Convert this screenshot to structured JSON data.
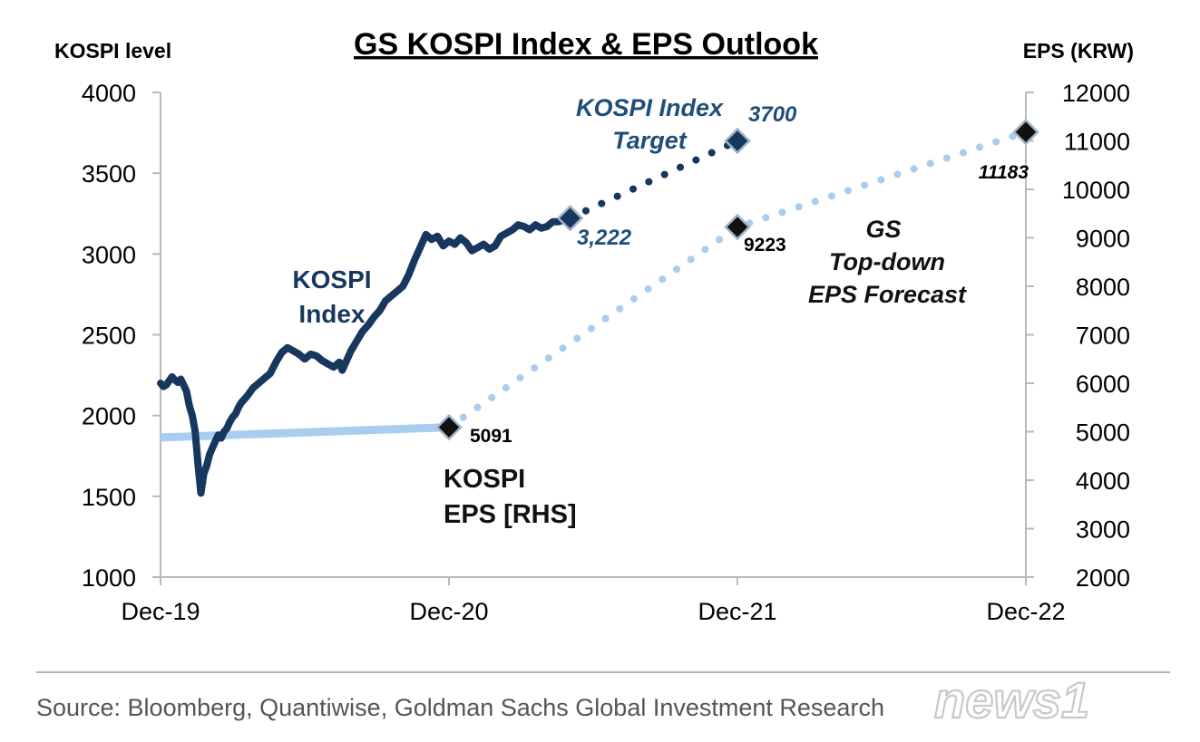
{
  "chart_data": {
    "type": "line",
    "title": "GS KOSPI Index & EPS Outlook",
    "left_axis": {
      "label": "KOSPI level",
      "range": [
        1000,
        4000
      ],
      "ticks": [
        1000,
        1500,
        2000,
        2500,
        3000,
        3500,
        4000
      ]
    },
    "right_axis": {
      "label": "EPS (KRW)",
      "range": [
        2000,
        12000
      ],
      "ticks": [
        2000,
        3000,
        4000,
        5000,
        6000,
        7000,
        8000,
        9000,
        10000,
        11000,
        12000
      ]
    },
    "x_axis": {
      "range": [
        0,
        3
      ],
      "ticks": [
        0,
        1,
        2,
        3
      ],
      "tick_labels": [
        "Dec-19",
        "Dec-20",
        "Dec-21",
        "Dec-22"
      ]
    },
    "series": [
      {
        "name": "KOSPI Index",
        "axis": "left",
        "style": "solid",
        "color": "#17375e",
        "points": [
          [
            0.0,
            2200
          ],
          [
            0.01,
            2180
          ],
          [
            0.02,
            2190
          ],
          [
            0.03,
            2215
          ],
          [
            0.04,
            2240
          ],
          [
            0.05,
            2220
          ],
          [
            0.06,
            2205
          ],
          [
            0.07,
            2225
          ],
          [
            0.08,
            2190
          ],
          [
            0.09,
            2150
          ],
          [
            0.1,
            2060
          ],
          [
            0.11,
            2000
          ],
          [
            0.12,
            1900
          ],
          [
            0.13,
            1700
          ],
          [
            0.14,
            1520
          ],
          [
            0.15,
            1640
          ],
          [
            0.16,
            1690
          ],
          [
            0.17,
            1760
          ],
          [
            0.18,
            1800
          ],
          [
            0.19,
            1840
          ],
          [
            0.2,
            1880
          ],
          [
            0.21,
            1860
          ],
          [
            0.22,
            1900
          ],
          [
            0.23,
            1920
          ],
          [
            0.24,
            1960
          ],
          [
            0.25,
            1990
          ],
          [
            0.26,
            2010
          ],
          [
            0.27,
            2050
          ],
          [
            0.28,
            2080
          ],
          [
            0.3,
            2120
          ],
          [
            0.32,
            2170
          ],
          [
            0.34,
            2200
          ],
          [
            0.36,
            2230
          ],
          [
            0.38,
            2260
          ],
          [
            0.4,
            2330
          ],
          [
            0.42,
            2390
          ],
          [
            0.44,
            2420
          ],
          [
            0.46,
            2400
          ],
          [
            0.48,
            2380
          ],
          [
            0.5,
            2350
          ],
          [
            0.52,
            2380
          ],
          [
            0.54,
            2370
          ],
          [
            0.56,
            2340
          ],
          [
            0.58,
            2320
          ],
          [
            0.6,
            2300
          ],
          [
            0.62,
            2330
          ],
          [
            0.63,
            2280
          ],
          [
            0.64,
            2320
          ],
          [
            0.66,
            2400
          ],
          [
            0.68,
            2460
          ],
          [
            0.7,
            2520
          ],
          [
            0.72,
            2560
          ],
          [
            0.74,
            2610
          ],
          [
            0.76,
            2650
          ],
          [
            0.78,
            2710
          ],
          [
            0.8,
            2740
          ],
          [
            0.82,
            2770
          ],
          [
            0.84,
            2800
          ],
          [
            0.86,
            2870
          ],
          [
            0.88,
            2960
          ],
          [
            0.9,
            3040
          ],
          [
            0.92,
            3120
          ],
          [
            0.94,
            3090
          ],
          [
            0.96,
            3110
          ],
          [
            0.98,
            3050
          ],
          [
            1.0,
            3080
          ],
          [
            1.02,
            3060
          ],
          [
            1.04,
            3100
          ],
          [
            1.06,
            3070
          ],
          [
            1.08,
            3020
          ],
          [
            1.1,
            3040
          ],
          [
            1.12,
            3060
          ],
          [
            1.14,
            3030
          ],
          [
            1.16,
            3050
          ],
          [
            1.18,
            3110
          ],
          [
            1.2,
            3130
          ],
          [
            1.22,
            3150
          ],
          [
            1.24,
            3180
          ],
          [
            1.26,
            3170
          ],
          [
            1.28,
            3150
          ],
          [
            1.3,
            3180
          ],
          [
            1.32,
            3160
          ],
          [
            1.34,
            3170
          ],
          [
            1.36,
            3200
          ],
          [
            1.38,
            3200
          ],
          [
            1.4,
            3210
          ],
          [
            1.42,
            3222
          ]
        ]
      },
      {
        "name": "KOSPI Index Target",
        "axis": "left",
        "style": "dotted",
        "color": "#17375e",
        "points": [
          [
            1.42,
            3222
          ],
          [
            2.0,
            3700
          ]
        ]
      },
      {
        "name": "KOSPI EPS [RHS]",
        "axis": "right",
        "style": "solid",
        "color": "#a9cdef",
        "points": [
          [
            0.0,
            4880
          ],
          [
            1.0,
            5091
          ]
        ]
      },
      {
        "name": "GS Top-down EPS Forecast",
        "axis": "right",
        "style": "dotted",
        "color": "#a9cdef",
        "points": [
          [
            1.0,
            5091
          ],
          [
            2.0,
            9223
          ],
          [
            3.0,
            11183
          ]
        ]
      }
    ],
    "markers": [
      {
        "name": "marker-kospi-current",
        "x": 1.42,
        "y": 3222,
        "axis": "left",
        "fill": "#17375e",
        "label": "3,222"
      },
      {
        "name": "marker-kospi-target",
        "x": 2.0,
        "y": 3700,
        "axis": "left",
        "fill": "#17375e",
        "label": "3700"
      },
      {
        "name": "marker-eps-dec20",
        "x": 1.0,
        "y": 5091,
        "axis": "right",
        "fill": "#111111",
        "label": "5091"
      },
      {
        "name": "marker-eps-dec21",
        "x": 2.0,
        "y": 9223,
        "axis": "right",
        "fill": "#111111",
        "label": "9223"
      },
      {
        "name": "marker-eps-dec22",
        "x": 3.0,
        "y": 11183,
        "axis": "right",
        "fill": "#111111",
        "label": "11183"
      }
    ],
    "annotations": {
      "kospi_index": [
        "KOSPI",
        "Index"
      ],
      "kospi_target": [
        "KOSPI Index",
        "Target"
      ],
      "kospi_eps": [
        "KOSPI",
        "EPS [RHS]"
      ],
      "gs_forecast": [
        "GS",
        "Top-down",
        "EPS Forecast"
      ]
    }
  },
  "source": "Source: Bloomberg, Quantiwise, Goldman Sachs Global Investment Research",
  "watermark": "news1"
}
